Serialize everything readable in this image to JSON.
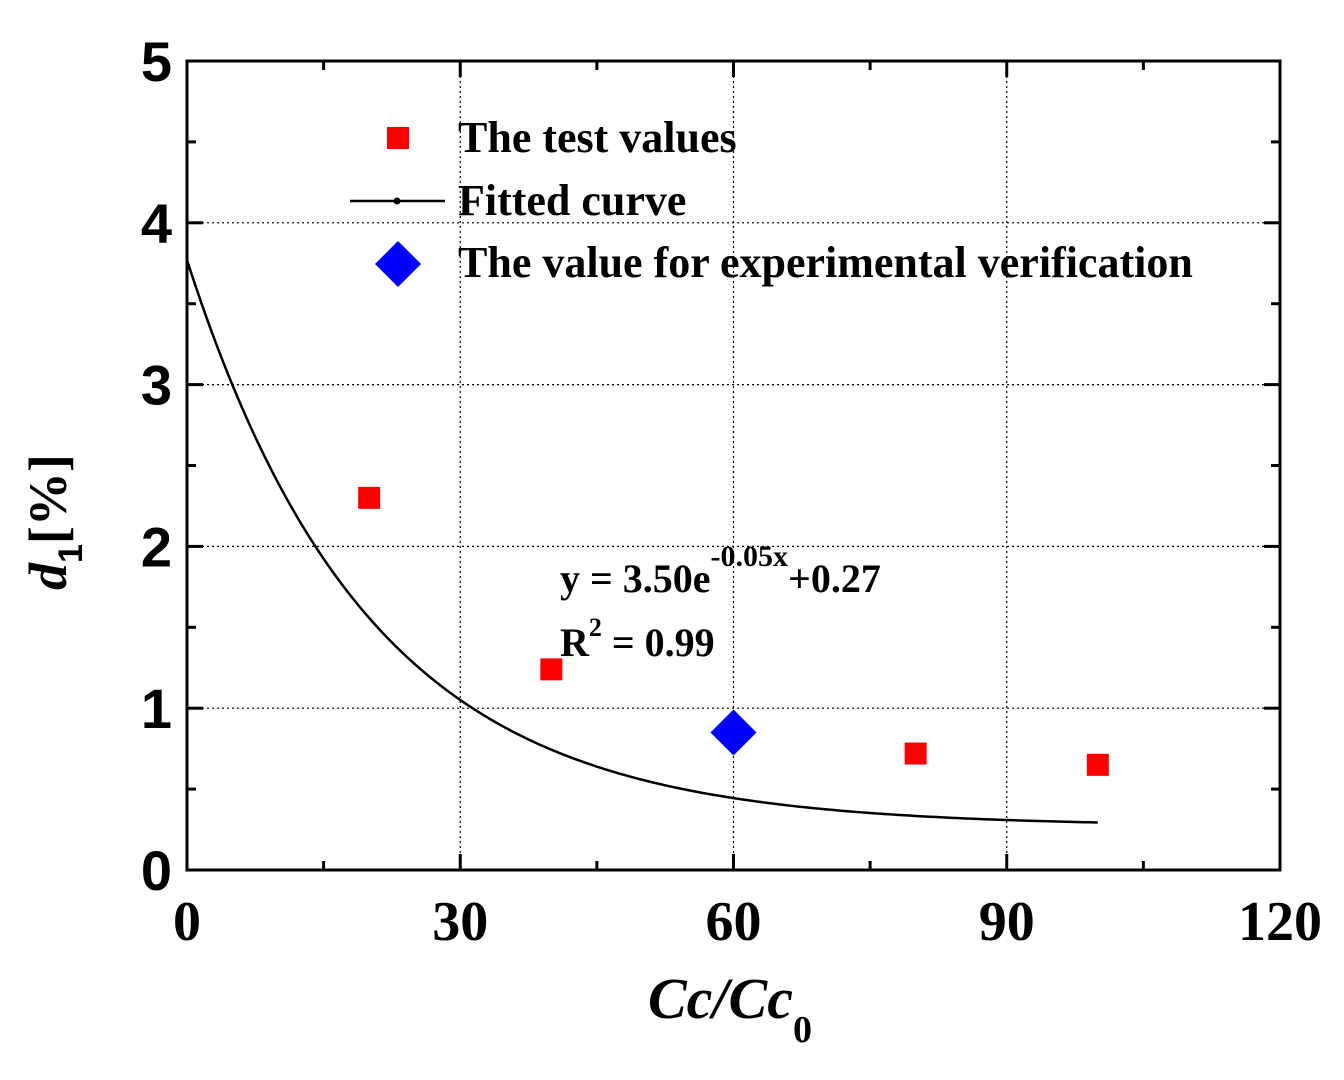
{
  "chart_data": {
    "type": "scatter",
    "xlabel": {
      "main": "Cc/Cc",
      "sub": "0"
    },
    "ylabel": {
      "main": "d",
      "sub": "1",
      "unit": "[%]"
    },
    "xlim": [
      0,
      120
    ],
    "ylim": [
      0,
      5
    ],
    "xticks": [
      0,
      30,
      60,
      90,
      120
    ],
    "yticks": [
      0,
      1,
      2,
      3,
      4,
      5
    ],
    "x_minor_step": 15,
    "y_minor_step": 0.5,
    "grid": true,
    "legend_position": "top",
    "series": [
      {
        "name": "The test values",
        "marker": "square",
        "color": "#ff0000",
        "x": [
          20,
          40,
          80,
          100
        ],
        "y": [
          2.3,
          1.24,
          0.72,
          0.65
        ]
      },
      {
        "name": "Fitted curve",
        "marker": "line",
        "color": "#000000",
        "x_range": [
          0,
          100
        ],
        "model": {
          "a": 3.5,
          "b": 0.05,
          "c": 0.27
        }
      },
      {
        "name": "The value for experimental verification",
        "marker": "diamond",
        "color": "#0000ff",
        "x": [
          60
        ],
        "y": [
          0.85
        ]
      }
    ],
    "annotation": {
      "eq_lhs": "y = 3.50e",
      "eq_exp": "-0.05x",
      "eq_rhs": "+0.27",
      "r2_lhs": "R",
      "r2_exp": "2",
      "r2_rhs": " = 0.99"
    }
  }
}
